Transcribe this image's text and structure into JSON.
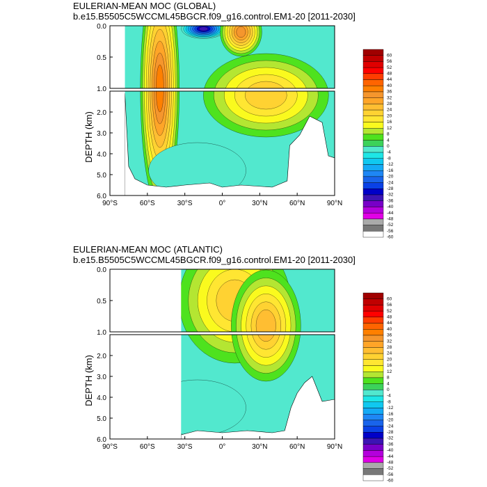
{
  "chart_data": [
    {
      "type": "heatmap",
      "title": "EULERIAN-MEAN MOC (GLOBAL)",
      "subtitle": "b.e15.B5505C5WCCML45BGCR.f09_g16.control.EM1-20 [2011-2030]",
      "ylabel": "DEPTH (km)",
      "xlim": [
        -90,
        90
      ],
      "xticks": [
        "90°S",
        "60°S",
        "30°S",
        "0°",
        "30°N",
        "60°N",
        "90°N"
      ],
      "yticks_upper": [
        "0.0",
        "0.5",
        "1.0"
      ],
      "yticks_lower": [
        "2.0",
        "3.0",
        "4.0",
        "5.0",
        "6.0"
      ],
      "ylim_upper": [
        0,
        1
      ],
      "ylim_lower": [
        1,
        6
      ],
      "colorbar_levels": [
        "60",
        "56",
        "52",
        "48",
        "44",
        "40",
        "36",
        "32",
        "28",
        "24",
        "20",
        "16",
        "12",
        "8",
        "4",
        "0",
        "-4",
        "-8",
        "-12",
        "-16",
        "-20",
        "-24",
        "-28",
        "-32",
        "-36",
        "-40",
        "-44",
        "-48",
        "-52",
        "-56",
        "-60"
      ],
      "features": [
        {
          "lat": -50,
          "depth_km": 1.0,
          "value": 34
        },
        {
          "lat": -15,
          "depth_km": 0.05,
          "value": -36
        },
        {
          "lat": 15,
          "depth_km": 0.1,
          "value": 30
        },
        {
          "lat": 35,
          "depth_km": 1.2,
          "value": 20
        },
        {
          "lat": -20,
          "depth_km": 4.8,
          "value": -6
        }
      ]
    },
    {
      "type": "heatmap",
      "title": "EULERIAN-MEAN MOC (ATLANTIC)",
      "subtitle": "b.e15.B5505C5WCCML45BGCR.f09_g16.control.EM1-20 [2011-2030]",
      "ylabel": "DEPTH (km)",
      "xlim": [
        -90,
        90
      ],
      "xticks": [
        "90°S",
        "60°S",
        "30°S",
        "0°",
        "30°N",
        "60°N",
        "90°N"
      ],
      "yticks_upper": [
        "0.0",
        "0.5",
        "1.0"
      ],
      "yticks_lower": [
        "2.0",
        "3.0",
        "4.0",
        "5.0",
        "6.0"
      ],
      "ylim_upper": [
        0,
        1
      ],
      "ylim_lower": [
        1,
        6
      ],
      "colorbar_levels": [
        "60",
        "56",
        "52",
        "48",
        "44",
        "40",
        "36",
        "32",
        "28",
        "24",
        "20",
        "16",
        "12",
        "8",
        "4",
        "0",
        "-4",
        "-8",
        "-12",
        "-16",
        "-20",
        "-24",
        "-28",
        "-32",
        "-36",
        "-40",
        "-44",
        "-48",
        "-52",
        "-56",
        "-60"
      ],
      "features": [
        {
          "lat": 10,
          "depth_km": 0.5,
          "value": 18
        },
        {
          "lat": 35,
          "depth_km": 0.9,
          "value": 22
        },
        {
          "lat": -20,
          "depth_km": 4.5,
          "value": -4
        }
      ]
    }
  ],
  "colors": {
    "ocean_zero": "#52e8ce",
    "land_bg": "#ffffff",
    "axis": "#000000"
  },
  "colorbar_palette": [
    "#a00000",
    "#c00000",
    "#e00000",
    "#ff0000",
    "#ff3c00",
    "#ff6400",
    "#ff8000",
    "#f5962d",
    "#ffa528",
    "#ffbe32",
    "#ffd232",
    "#ffe632",
    "#fafa1e",
    "#b4e632",
    "#4ee21e",
    "#3cd25a",
    "#52e8ce",
    "#1ee6e6",
    "#10c8f0",
    "#14aaf5",
    "#1e87f5",
    "#1964eb",
    "#0a41e6",
    "#0000c8",
    "#3c14b4",
    "#7800c8",
    "#b400dc",
    "#e100e6",
    "#aaaaaa",
    "#787878",
    "#ffffff"
  ]
}
